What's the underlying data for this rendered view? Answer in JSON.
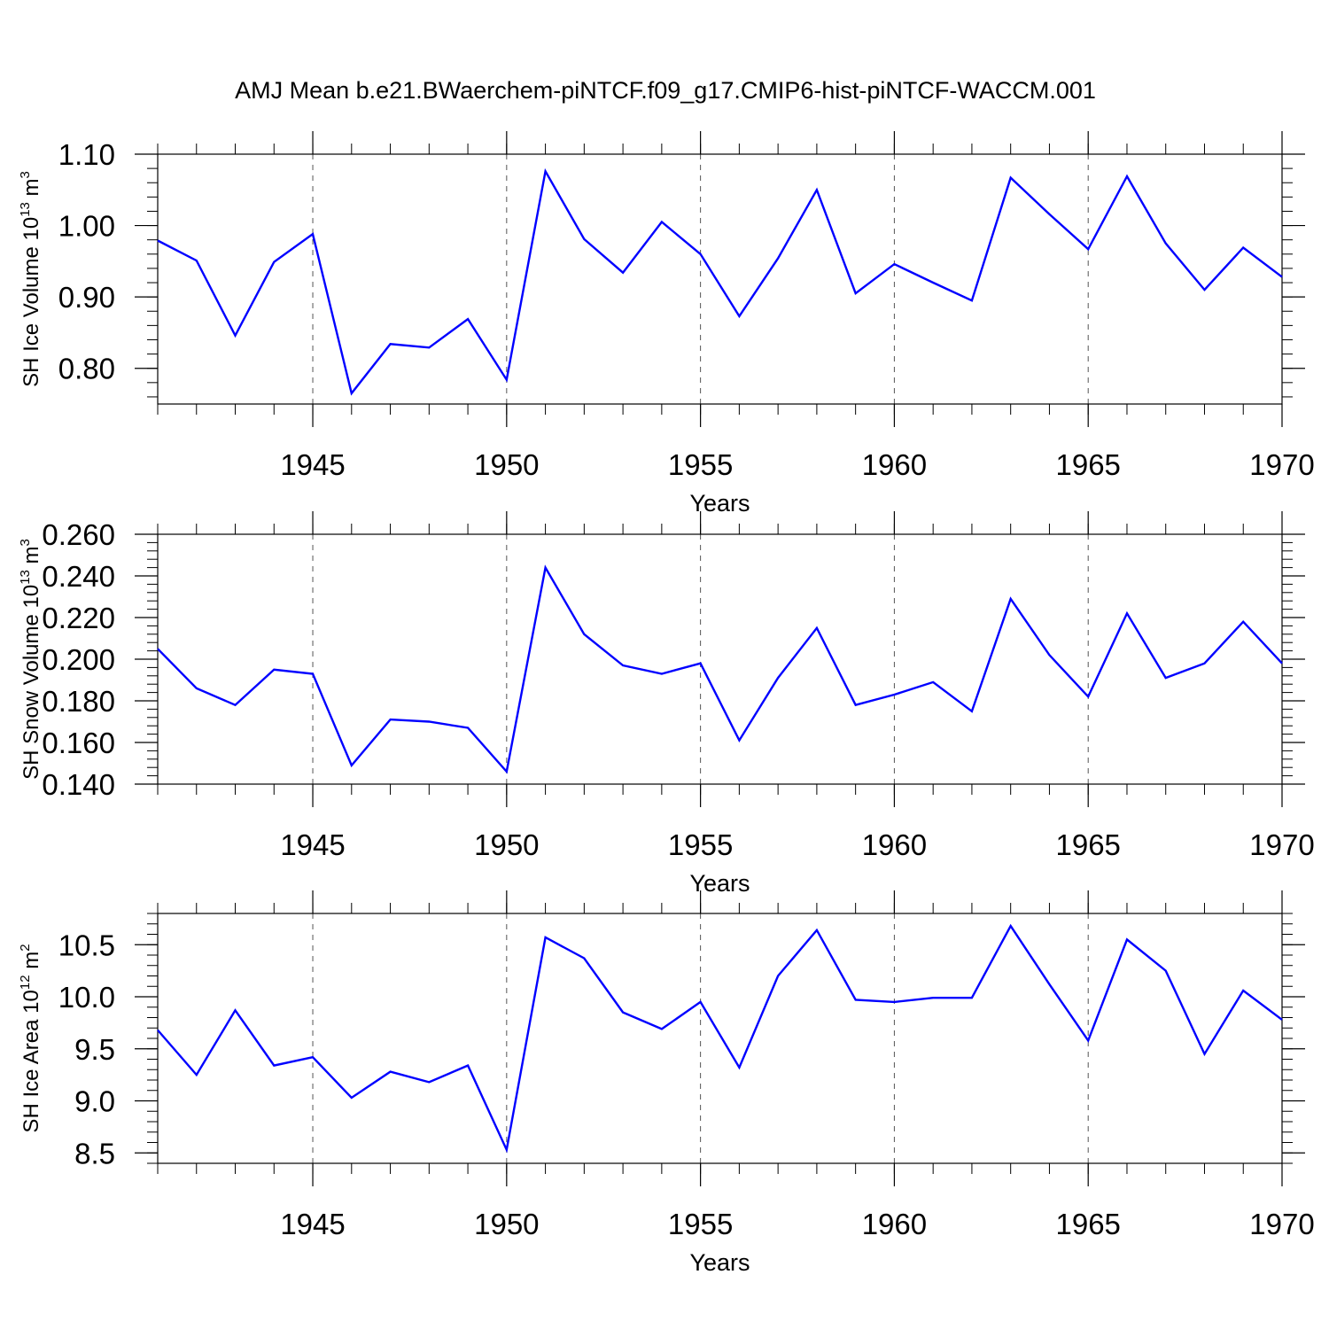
{
  "figure_title": "AMJ Mean b.e21.BWaerchem-piNTCF.f09_g17.CMIP6-hist-piNTCF-WACCM.001",
  "chart_data": [
    {
      "type": "line",
      "title": "AMJ Mean b.e21.BWaerchem-piNTCF.f09_g17.CMIP6-hist-piNTCF-WACCM.001",
      "ylabel": "SH Ice Volume 10",
      "ylabel_exponent": "13",
      "ylabel_unit": "m",
      "ylabel_unit_exponent": "3",
      "xlabel": "Years",
      "xlim": [
        1941,
        1970
      ],
      "ylim": [
        0.75,
        1.1
      ],
      "yticks": [
        0.8,
        0.9,
        1.0,
        1.1
      ],
      "ytick_labels": [
        "0.80",
        "0.90",
        "1.00",
        "1.10"
      ],
      "xticks": [
        1945,
        1950,
        1955,
        1960,
        1965,
        1970
      ],
      "xtick_labels": [
        "1945",
        "1950",
        "1955",
        "1960",
        "1965",
        "1970"
      ],
      "grid": "vertical dashed at major x ticks",
      "series": [
        {
          "name": "SH Ice Volume",
          "color": "#0000ff",
          "x": [
            1941,
            1942,
            1943,
            1944,
            1945,
            1946,
            1947,
            1948,
            1949,
            1950,
            1951,
            1952,
            1953,
            1954,
            1955,
            1956,
            1957,
            1958,
            1959,
            1960,
            1961,
            1962,
            1963,
            1964,
            1965,
            1966,
            1967,
            1968,
            1969,
            1970
          ],
          "values": [
            0.979,
            0.951,
            0.846,
            0.949,
            0.988,
            0.765,
            0.834,
            0.829,
            0.869,
            0.784,
            1.076,
            0.981,
            0.934,
            1.005,
            0.96,
            0.873,
            0.954,
            1.05,
            0.905,
            0.946,
            0.92,
            0.895,
            1.067,
            1.016,
            0.967,
            1.069,
            0.975,
            0.91,
            0.969,
            0.928
          ]
        }
      ]
    },
    {
      "type": "line",
      "ylabel": "SH Snow Volume 10",
      "ylabel_exponent": "13",
      "ylabel_unit": "m",
      "ylabel_unit_exponent": "3",
      "xlabel": "Years",
      "xlim": [
        1941,
        1970
      ],
      "ylim": [
        0.14,
        0.26
      ],
      "yticks": [
        0.14,
        0.16,
        0.18,
        0.2,
        0.22,
        0.24,
        0.26
      ],
      "ytick_labels": [
        "0.140",
        "0.160",
        "0.180",
        "0.200",
        "0.220",
        "0.240",
        "0.260"
      ],
      "xticks": [
        1945,
        1950,
        1955,
        1960,
        1965,
        1970
      ],
      "xtick_labels": [
        "1945",
        "1950",
        "1955",
        "1960",
        "1965",
        "1970"
      ],
      "grid": "vertical dashed at major x ticks",
      "series": [
        {
          "name": "SH Snow Volume",
          "color": "#0000ff",
          "x": [
            1941,
            1942,
            1943,
            1944,
            1945,
            1946,
            1947,
            1948,
            1949,
            1950,
            1951,
            1952,
            1953,
            1954,
            1955,
            1956,
            1957,
            1958,
            1959,
            1960,
            1961,
            1962,
            1963,
            1964,
            1965,
            1966,
            1967,
            1968,
            1969,
            1970
          ],
          "values": [
            0.205,
            0.186,
            0.178,
            0.195,
            0.193,
            0.149,
            0.171,
            0.17,
            0.167,
            0.146,
            0.244,
            0.212,
            0.197,
            0.193,
            0.198,
            0.161,
            0.191,
            0.215,
            0.178,
            0.183,
            0.189,
            0.175,
            0.229,
            0.202,
            0.182,
            0.222,
            0.191,
            0.198,
            0.218,
            0.198
          ]
        }
      ]
    },
    {
      "type": "line",
      "ylabel": "SH Ice Area 10",
      "ylabel_exponent": "12",
      "ylabel_unit": "m",
      "ylabel_unit_exponent": "2",
      "xlabel": "Years",
      "xlim": [
        1941,
        1970
      ],
      "ylim": [
        8.4,
        10.8
      ],
      "yticks": [
        8.5,
        9.0,
        9.5,
        10.0,
        10.5
      ],
      "ytick_labels": [
        "8.5",
        "9.0",
        "9.5",
        "10.0",
        "10.5"
      ],
      "xticks": [
        1945,
        1950,
        1955,
        1960,
        1965,
        1970
      ],
      "xtick_labels": [
        "1945",
        "1950",
        "1955",
        "1960",
        "1965",
        "1970"
      ],
      "grid": "vertical dashed at major x ticks",
      "series": [
        {
          "name": "SH Ice Area",
          "color": "#0000ff",
          "x": [
            1941,
            1942,
            1943,
            1944,
            1945,
            1946,
            1947,
            1948,
            1949,
            1950,
            1951,
            1952,
            1953,
            1954,
            1955,
            1956,
            1957,
            1958,
            1959,
            1960,
            1961,
            1962,
            1963,
            1964,
            1965,
            1966,
            1967,
            1968,
            1969,
            1970
          ],
          "values": [
            9.68,
            9.25,
            9.87,
            9.34,
            9.42,
            9.03,
            9.28,
            9.18,
            9.34,
            8.53,
            10.57,
            10.37,
            9.85,
            9.69,
            9.95,
            9.32,
            10.2,
            10.64,
            9.97,
            9.95,
            9.99,
            9.99,
            10.68,
            10.12,
            9.58,
            10.55,
            10.25,
            9.45,
            10.06,
            9.78
          ]
        }
      ]
    }
  ]
}
